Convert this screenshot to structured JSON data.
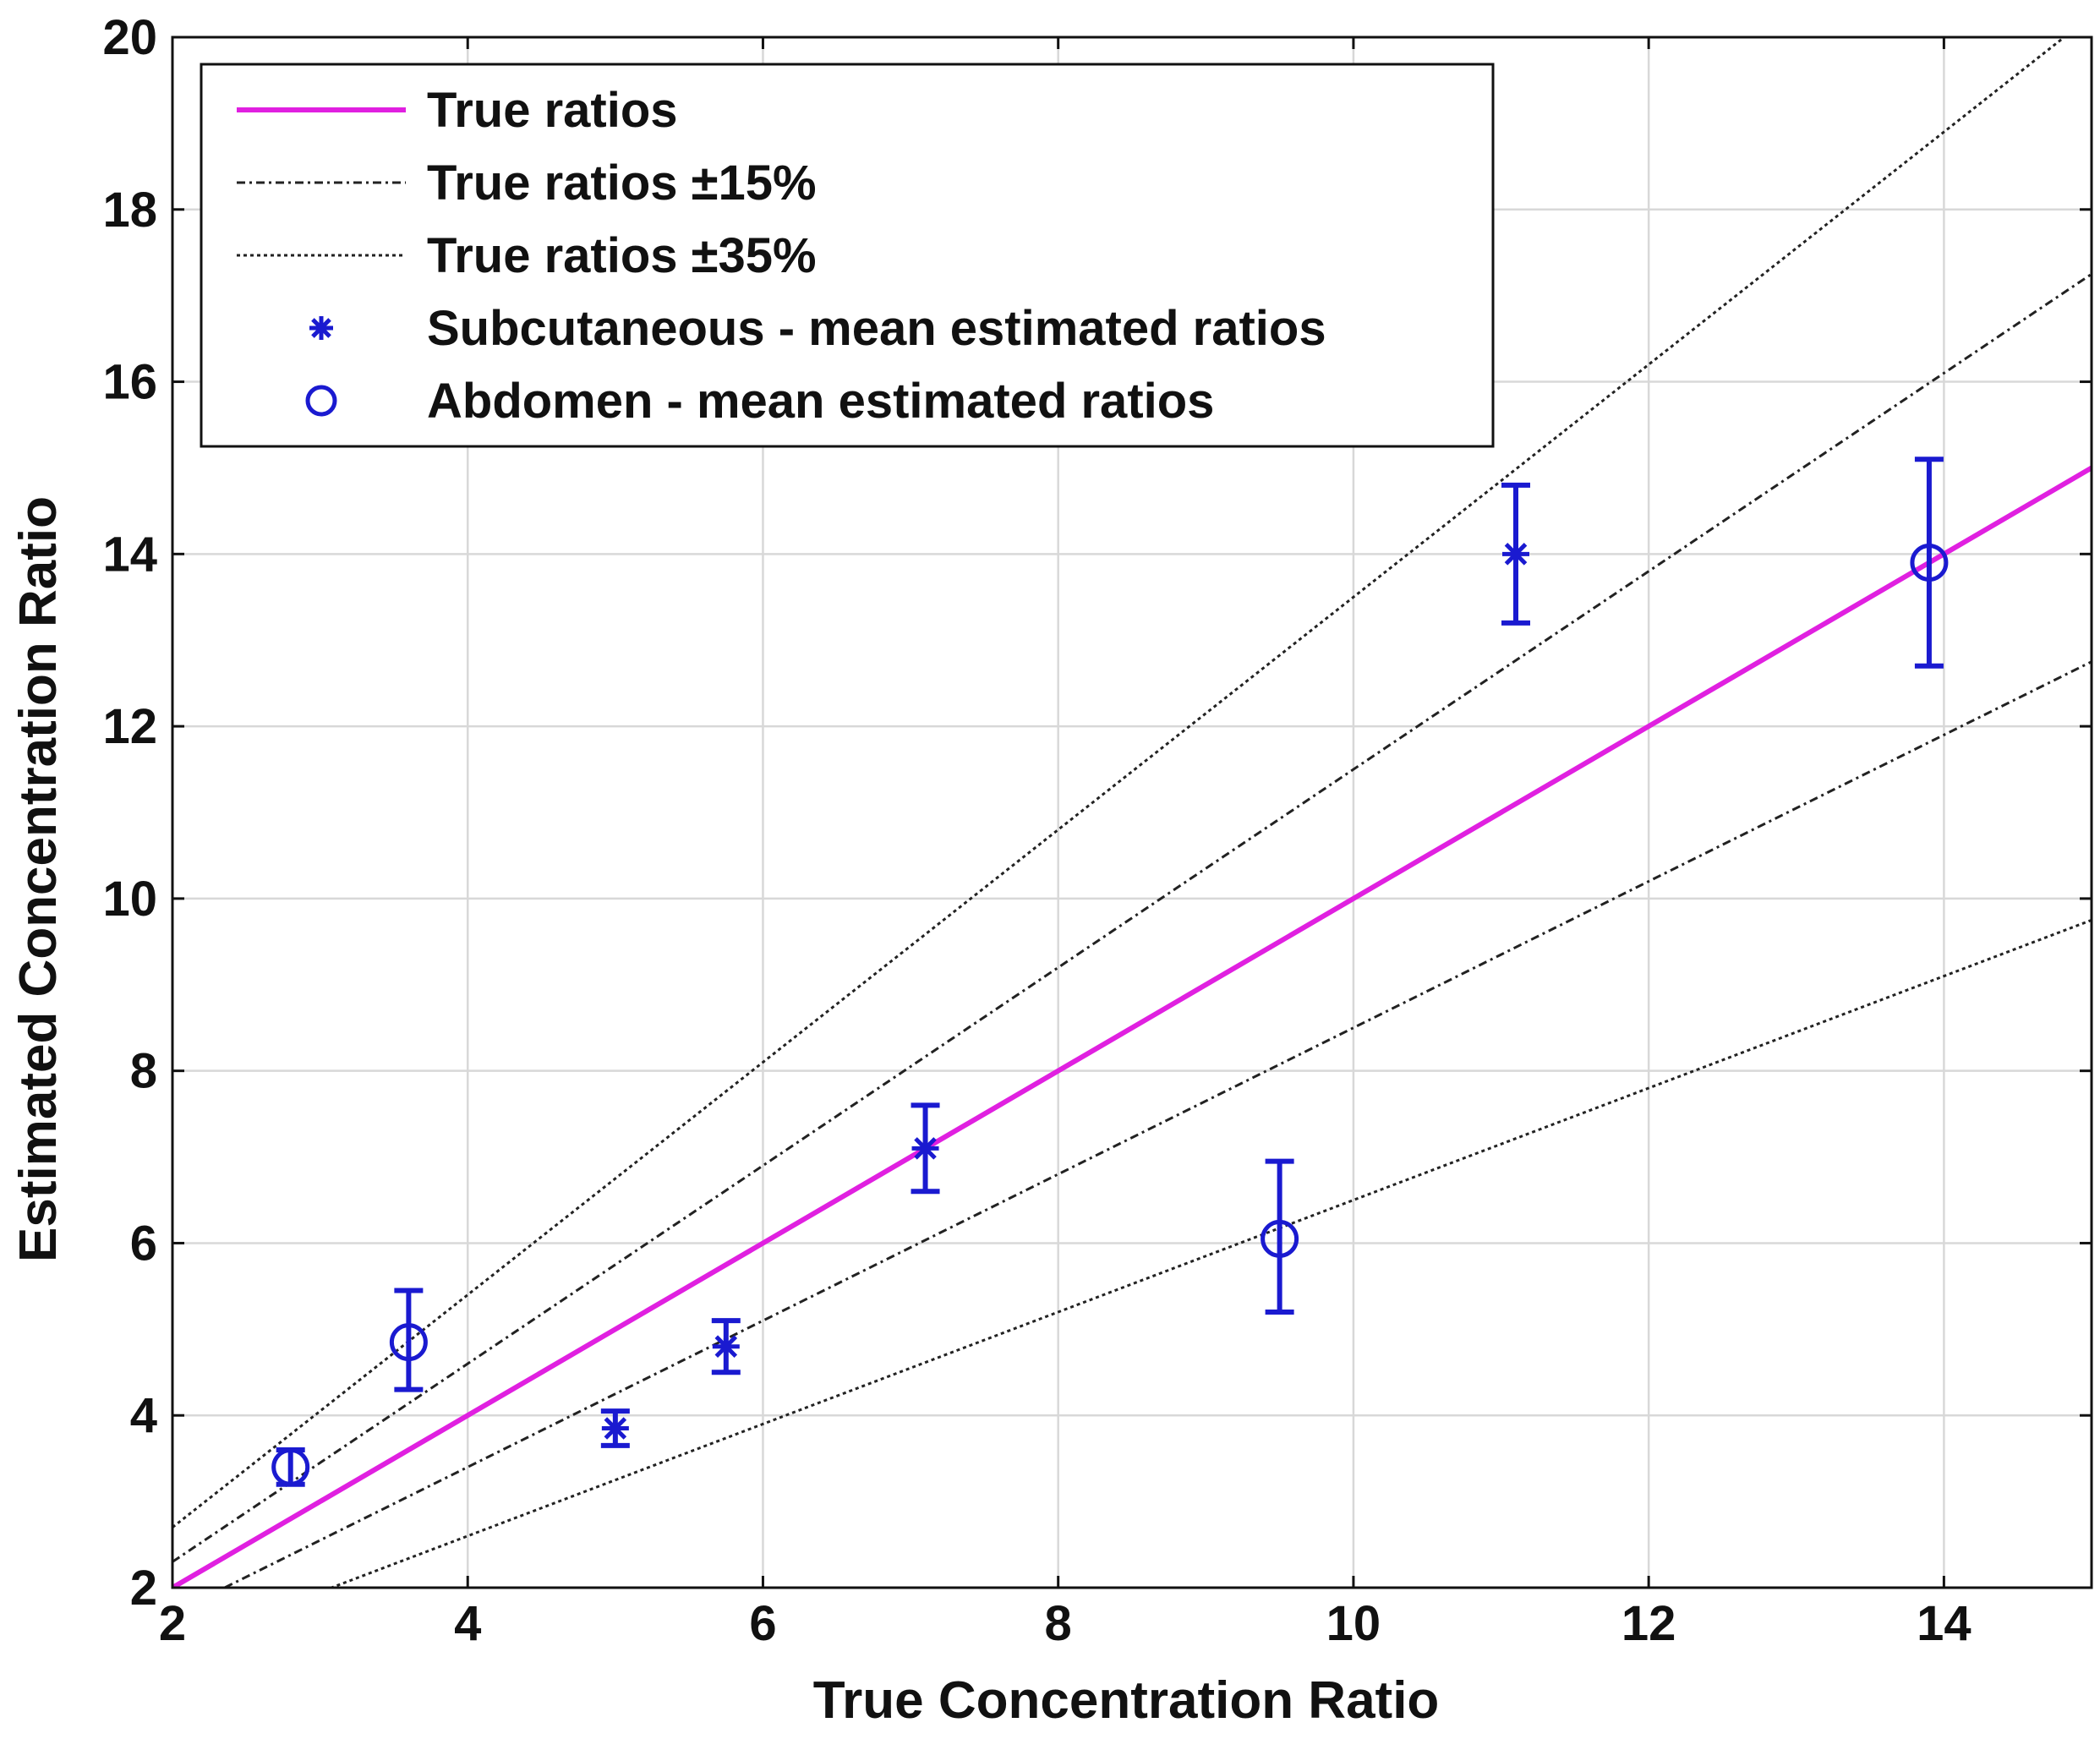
{
  "chart_data": {
    "type": "scatter",
    "title": "",
    "xlabel": "True Concentration Ratio",
    "ylabel": "Estimated Concentration Ratio",
    "xlim": [
      2,
      15
    ],
    "ylim": [
      2,
      20
    ],
    "xticks": [
      2,
      4,
      6,
      8,
      10,
      12,
      14
    ],
    "yticks": [
      2,
      4,
      6,
      8,
      10,
      12,
      14,
      16,
      18,
      20
    ],
    "grid": true,
    "legend_position": "top-left",
    "reference_lines": [
      {
        "name": "True ratios",
        "slope": 1.0,
        "style": "solid",
        "color": "#e020e0"
      },
      {
        "name": "True ratios ±15%",
        "slope": 1.15,
        "style": "dash-dot",
        "color": "#222222"
      },
      {
        "name": "True ratios ±15%",
        "slope": 0.85,
        "style": "dash-dot",
        "color": "#222222"
      },
      {
        "name": "True ratios ±35%",
        "slope": 1.35,
        "style": "dotted",
        "color": "#222222"
      },
      {
        "name": "True ratios ±35%",
        "slope": 0.65,
        "style": "dotted",
        "color": "#222222"
      }
    ],
    "series": [
      {
        "name": "Subcutaneous - mean estimated ratios",
        "marker": "asterisk",
        "color": "#1a1ad0",
        "points": [
          {
            "x": 5.0,
            "y": 3.85,
            "err_low": 3.65,
            "err_high": 4.05
          },
          {
            "x": 5.75,
            "y": 4.8,
            "err_low": 4.5,
            "err_high": 5.1
          },
          {
            "x": 7.1,
            "y": 7.1,
            "err_low": 6.6,
            "err_high": 7.6
          },
          {
            "x": 11.1,
            "y": 14.0,
            "err_low": 13.2,
            "err_high": 14.8
          }
        ]
      },
      {
        "name": "Abdomen - mean estimated ratios",
        "marker": "circle",
        "color": "#1a1ad0",
        "points": [
          {
            "x": 2.8,
            "y": 3.4,
            "err_low": 3.2,
            "err_high": 3.6
          },
          {
            "x": 3.6,
            "y": 4.85,
            "err_low": 4.3,
            "err_high": 5.45
          },
          {
            "x": 9.5,
            "y": 6.05,
            "err_low": 5.2,
            "err_high": 6.95
          },
          {
            "x": 13.9,
            "y": 13.9,
            "err_low": 12.7,
            "err_high": 15.1
          }
        ]
      }
    ],
    "legend": [
      {
        "label": "True ratios",
        "kind": "solid"
      },
      {
        "label": "True ratios ±15%",
        "kind": "dash-dot"
      },
      {
        "label": "True ratios ±35%",
        "kind": "dotted"
      },
      {
        "label": "Subcutaneous - mean estimated ratios",
        "kind": "asterisk"
      },
      {
        "label": "Abdomen - mean estimated ratios",
        "kind": "circle"
      }
    ]
  }
}
